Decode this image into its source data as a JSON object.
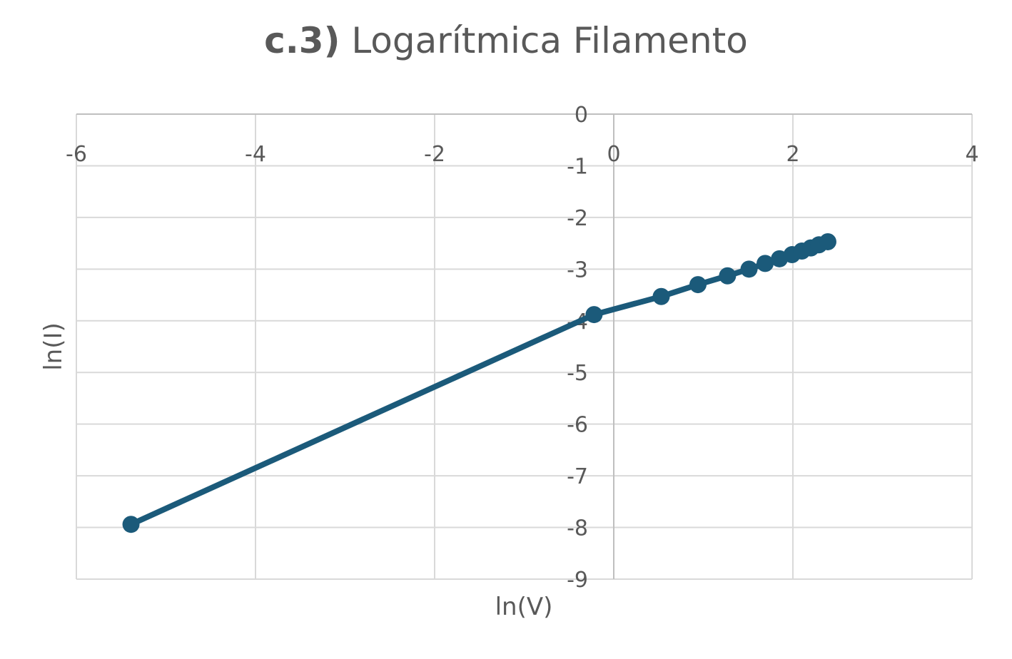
{
  "chart_data": {
    "type": "scatter",
    "title_bold": "c.3)",
    "title_rest": " Logarítmica Filamento",
    "xlabel": "ln(V)",
    "ylabel": "ln(I)",
    "xlim": [
      -6,
      4
    ],
    "ylim": [
      -9,
      0
    ],
    "x_ticks": [
      "-6",
      "-4",
      "-2",
      "0",
      "2",
      "4"
    ],
    "y_ticks": [
      "0",
      "-1",
      "-2",
      "-3",
      "-4",
      "-5",
      "-6",
      "-7",
      "-8",
      "-9"
    ],
    "grid": true,
    "legend": "none",
    "line_color": "#1b5a7a",
    "series": [
      {
        "x": [
          -5.39,
          -0.22,
          0.53,
          0.94,
          1.27,
          1.51,
          1.69,
          1.85,
          1.99,
          2.1,
          2.2,
          2.29,
          2.39
        ],
        "y": [
          -7.94,
          -3.88,
          -3.53,
          -3.3,
          -3.13,
          -3.0,
          -2.89,
          -2.8,
          -2.72,
          -2.65,
          -2.59,
          -2.53,
          -2.47
        ]
      }
    ]
  }
}
